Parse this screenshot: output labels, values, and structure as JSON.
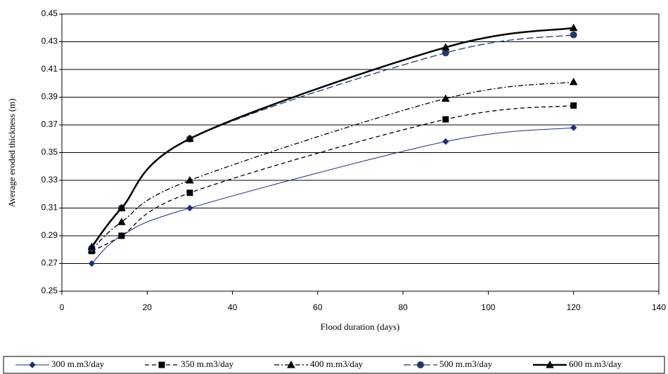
{
  "chart_data": {
    "type": "line",
    "xlabel": "Flood duration (days)",
    "ylabel": "Average eroded thickness (m)",
    "x": [
      7,
      14,
      30,
      90,
      120
    ],
    "series": [
      {
        "name": "300 m.m3/day",
        "color": "#1f2a8a",
        "marker": "diamond",
        "linestyle": "solid",
        "values": [
          0.27,
          0.29,
          0.31,
          0.358,
          0.368
        ]
      },
      {
        "name": "350 m.m3/day",
        "color": "#000000",
        "marker": "square",
        "linestyle": "dashed",
        "values": [
          0.279,
          0.29,
          0.321,
          0.374,
          0.384
        ]
      },
      {
        "name": "400 m.m3/day",
        "color": "#000000",
        "marker": "triangle",
        "linestyle": "dash-dot",
        "values": [
          0.28,
          0.3,
          0.33,
          0.389,
          0.401
        ]
      },
      {
        "name": "500 m.m3/day",
        "color": "#1f3a6a",
        "marker": "circle",
        "linestyle": "long-dash",
        "values": [
          0.281,
          0.31,
          0.36,
          0.422,
          0.435
        ]
      },
      {
        "name": "600 m.m3/day",
        "color": "#000000",
        "marker": "triangle",
        "linestyle": "thick",
        "values": [
          0.282,
          0.31,
          0.36,
          0.426,
          0.44
        ]
      }
    ],
    "xlim": [
      0,
      140
    ],
    "xticks": [
      0,
      20,
      40,
      60,
      80,
      100,
      120,
      140
    ],
    "ylim": [
      0.25,
      0.45
    ],
    "yticks": [
      0.25,
      0.27,
      0.29,
      0.31,
      0.33,
      0.35,
      0.37,
      0.39,
      0.41,
      0.43,
      0.45
    ],
    "grid": true,
    "legend": "bottom"
  }
}
